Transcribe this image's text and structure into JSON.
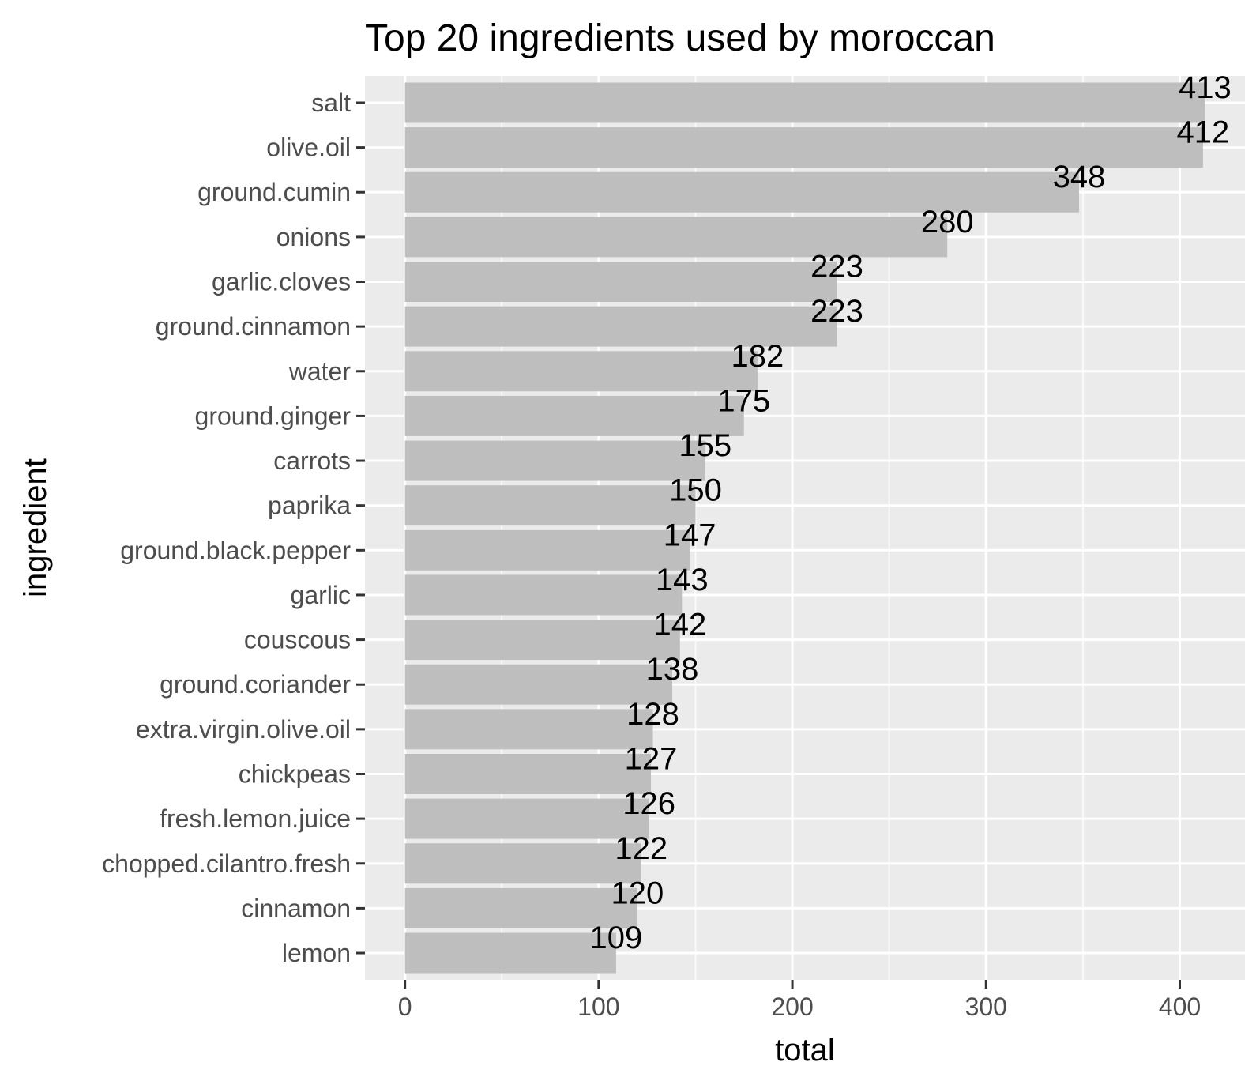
{
  "chart_data": {
    "type": "bar",
    "orientation": "horizontal",
    "title": "Top 20 ingredients used by moroccan",
    "xlabel": "total",
    "ylabel": "ingredient",
    "xlim": [
      -20.65,
      433.65
    ],
    "xticks": [
      0,
      100,
      200,
      300,
      400
    ],
    "xtick_labels": [
      "0",
      "100",
      "200",
      "300",
      "400"
    ],
    "minor_xticks": [
      50,
      150,
      250,
      350
    ],
    "grid": true,
    "legend": "none",
    "categories": [
      "salt",
      "olive.oil",
      "ground.cumin",
      "onions",
      "garlic.cloves",
      "ground.cinnamon",
      "water",
      "ground.ginger",
      "carrots",
      "paprika",
      "ground.black.pepper",
      "garlic",
      "couscous",
      "ground.coriander",
      "extra.virgin.olive.oil",
      "chickpeas",
      "fresh.lemon.juice",
      "chopped.cilantro.fresh",
      "cinnamon",
      "lemon"
    ],
    "values": [
      413,
      412,
      348,
      280,
      223,
      223,
      182,
      175,
      155,
      150,
      147,
      143,
      142,
      138,
      128,
      127,
      126,
      122,
      120,
      109
    ],
    "value_labels": [
      "413",
      "412",
      "348",
      "280",
      "223",
      "223",
      "182",
      "175",
      "155",
      "150",
      "147",
      "143",
      "142",
      "138",
      "128",
      "127",
      "126",
      "122",
      "120",
      "109"
    ],
    "colors": {
      "bar": "#bebebe",
      "panel": "#ebebeb",
      "grid_major": "#ffffff",
      "tick_text": "#4d4d4d",
      "tick_mark": "#333333"
    }
  }
}
